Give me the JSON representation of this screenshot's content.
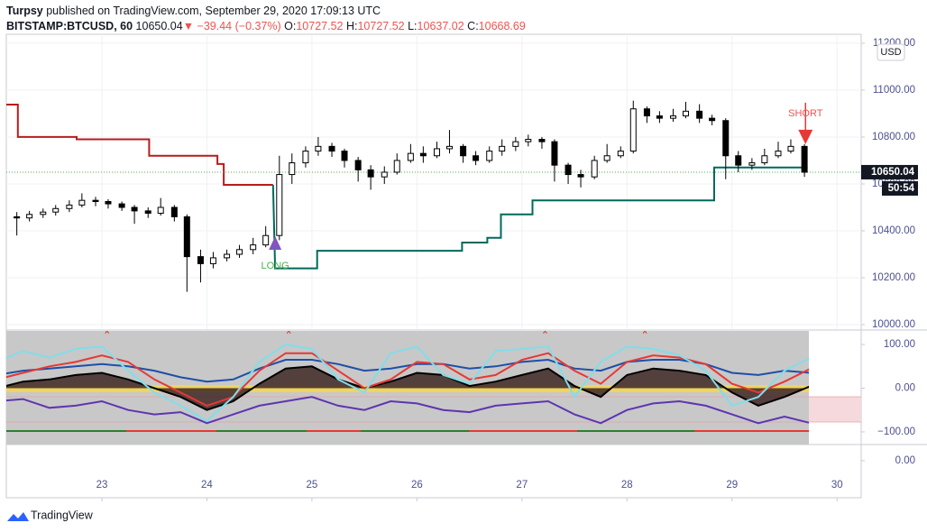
{
  "header": {
    "author": "Turpsy",
    "published": "published on TradingView.com, September 29, 2020 17:09:13 UTC",
    "symbol": "BITSTAMP:BTCUSD, 60",
    "change": "−39.44 (−0.37%)",
    "ohlc": [
      {
        "label": "O:",
        "value": 10727.52
      },
      {
        "label": "H:",
        "value": 10727.52
      },
      {
        "label": "L:",
        "value": 10637.02
      },
      {
        "label": "C:",
        "value": 10668.69
      }
    ]
  },
  "currency": "USD",
  "countdown": "50:54",
  "brand": "TradingView",
  "chart_data": [
    {
      "type": "candlestick",
      "x": [
        22.06,
        22.19,
        22.31,
        22.44,
        22.56,
        22.69,
        22.81,
        22.94,
        23.06,
        23.19,
        23.31,
        23.44,
        23.56,
        23.69,
        23.81,
        23.94,
        24.06,
        24.19,
        24.31,
        24.44,
        24.56,
        24.69,
        24.81,
        24.94,
        25.06,
        25.19,
        25.31,
        25.44,
        25.56,
        25.69,
        25.81,
        25.94,
        26.06,
        26.19,
        26.31,
        26.44,
        26.56,
        26.69,
        26.81,
        26.94,
        27.06,
        27.19,
        27.31,
        27.44,
        27.56,
        27.69,
        27.81,
        27.94,
        28.06,
        28.19,
        28.31,
        28.44,
        28.56,
        28.69,
        28.81,
        28.94,
        29.06,
        29.19,
        29.31,
        29.44,
        29.56,
        29.69
      ],
      "open": [
        10440,
        10460,
        10455,
        10470,
        10480,
        10495,
        10510,
        10530,
        10525,
        10515,
        10500,
        10485,
        10475,
        10500,
        10460,
        10290,
        10260,
        10285,
        10300,
        10320,
        10340,
        10380,
        10640,
        10690,
        10740,
        10760,
        10740,
        10700,
        10660,
        10630,
        10650,
        10700,
        10730,
        10720,
        10750,
        10760,
        10720,
        10700,
        10740,
        10760,
        10780,
        10790,
        10780,
        10680,
        10640,
        10630,
        10700,
        10720,
        10740,
        10920,
        10890,
        10880,
        10890,
        10910,
        10880,
        10870,
        10720,
        10680,
        10690,
        10720,
        10740,
        10760
      ],
      "high": [
        10475,
        10480,
        10485,
        10495,
        10510,
        10530,
        10560,
        10545,
        10535,
        10525,
        10510,
        10500,
        10540,
        10510,
        10470,
        10320,
        10310,
        10320,
        10340,
        10370,
        10420,
        10720,
        10730,
        10760,
        10800,
        10775,
        10750,
        10715,
        10680,
        10675,
        10730,
        10770,
        10760,
        10780,
        10830,
        10770,
        10740,
        10760,
        10790,
        10800,
        10810,
        10800,
        10790,
        10690,
        10660,
        10720,
        10770,
        10760,
        10955,
        10930,
        10910,
        10920,
        10950,
        10940,
        10895,
        10880,
        10740,
        10710,
        10750,
        10780,
        10790,
        10770
      ],
      "low": [
        10425,
        10380,
        10440,
        10455,
        10465,
        10480,
        10500,
        10505,
        10495,
        10485,
        10430,
        10455,
        10465,
        10440,
        10140,
        10180,
        10240,
        10270,
        10285,
        10300,
        10330,
        10360,
        10600,
        10670,
        10720,
        10715,
        10670,
        10610,
        10575,
        10600,
        10640,
        10690,
        10690,
        10710,
        10730,
        10690,
        10680,
        10690,
        10720,
        10740,
        10760,
        10750,
        10610,
        10600,
        10585,
        10620,
        10690,
        10710,
        10730,
        10860,
        10860,
        10865,
        10880,
        10860,
        10850,
        10620,
        10650,
        10660,
        10680,
        10710,
        10730,
        10630
      ],
      "close": [
        10460,
        10455,
        10470,
        10480,
        10495,
        10510,
        10530,
        10525,
        10515,
        10500,
        10485,
        10475,
        10500,
        10460,
        10290,
        10260,
        10285,
        10300,
        10320,
        10340,
        10380,
        10640,
        10690,
        10740,
        10760,
        10740,
        10700,
        10660,
        10630,
        10650,
        10700,
        10730,
        10720,
        10750,
        10760,
        10720,
        10700,
        10740,
        10760,
        10780,
        10790,
        10780,
        10680,
        10640,
        10630,
        10700,
        10720,
        10740,
        10920,
        10890,
        10880,
        10890,
        10910,
        10880,
        10870,
        10720,
        10680,
        10690,
        10720,
        10740,
        10760,
        10650
      ],
      "up_color": "#ffffff",
      "down_color": "#000000",
      "wick_color": "#000000",
      "lines": [
        {
          "color": "#b71c1c",
          "x": [
            22.09,
            22.2,
            22.2,
            22.76,
            22.76,
            23.45,
            23.45,
            24.1,
            24.1,
            24.16,
            24.16,
            24.63
          ],
          "values": [
            10938,
            10938,
            10800,
            10800,
            10790,
            10790,
            10720,
            10720,
            10685,
            10685,
            10596,
            10596
          ]
        },
        {
          "color": "#00695c",
          "x": [
            24.63,
            24.65,
            25.05,
            25.05,
            26.43,
            26.43,
            26.67,
            26.67,
            26.8,
            26.8,
            27.1,
            27.1,
            28.83,
            28.83,
            29.72
          ],
          "values": [
            10596,
            10240,
            10240,
            10315,
            10315,
            10350,
            10350,
            10370,
            10370,
            10470,
            10470,
            10530,
            10530,
            10670,
            10670
          ]
        }
      ],
      "last_price": 10650.04,
      "last_price_color": "#4caf50",
      "annotations": [
        {
          "text": "LONG",
          "x": 24.65,
          "y": 10250,
          "color": "#4caf50",
          "arrow": "up",
          "arrow_color": "#7e57c2"
        },
        {
          "text": "SHORT",
          "x": 29.7,
          "y": 10900,
          "color": "#ef5350",
          "arrow": "down",
          "arrow_color": "#e53935"
        }
      ],
      "xlim": [
        22.09,
        30.23
      ],
      "xticks": [
        23,
        24,
        25,
        26,
        27,
        28,
        29,
        30
      ],
      "ylim": [
        9981,
        11238
      ],
      "yticks": [
        {
          "value": 10000,
          "label": "10000.00"
        },
        {
          "value": 10200,
          "label": "10200.00"
        },
        {
          "value": 10400,
          "label": "10400.00"
        },
        {
          "value": 10600,
          "label": "10600.00"
        },
        {
          "value": 10800,
          "label": "10800.00"
        },
        {
          "value": 11000,
          "label": "11000.00"
        },
        {
          "value": 11200,
          "label": "11200.00"
        }
      ],
      "grid": true
    },
    {
      "type": "line",
      "x": [
        22.0,
        22.25,
        22.5,
        22.75,
        23.0,
        23.25,
        23.5,
        23.75,
        24.0,
        24.25,
        24.5,
        24.75,
        25.0,
        25.25,
        25.5,
        25.75,
        26.0,
        26.25,
        26.5,
        26.75,
        27.0,
        27.25,
        27.5,
        27.75,
        28.0,
        28.25,
        28.5,
        28.75,
        29.0,
        29.25,
        29.5,
        29.75
      ],
      "area": {
        "color": "#3e2723",
        "values": [
          0,
          15,
          20,
          30,
          35,
          20,
          0,
          -20,
          -50,
          -30,
          10,
          45,
          50,
          20,
          0,
          15,
          35,
          30,
          5,
          15,
          30,
          45,
          5,
          -20,
          30,
          45,
          40,
          30,
          -10,
          -40,
          -20,
          5
        ]
      },
      "series": [
        {
          "color": "#000000",
          "values": [
            0,
            15,
            20,
            30,
            35,
            20,
            0,
            -20,
            -50,
            -30,
            10,
            45,
            50,
            20,
            0,
            15,
            35,
            30,
            5,
            15,
            30,
            45,
            5,
            -20,
            30,
            45,
            40,
            30,
            -10,
            -40,
            -20,
            5
          ]
        },
        {
          "color": "#1e4fa8",
          "values": [
            30,
            40,
            45,
            50,
            55,
            50,
            40,
            25,
            15,
            20,
            45,
            65,
            65,
            55,
            40,
            45,
            55,
            55,
            45,
            50,
            60,
            65,
            45,
            40,
            60,
            65,
            65,
            55,
            35,
            30,
            40,
            35
          ]
        },
        {
          "color": "#e53935",
          "values": [
            20,
            35,
            50,
            60,
            75,
            60,
            20,
            -10,
            -40,
            -20,
            40,
            80,
            80,
            40,
            0,
            20,
            60,
            55,
            20,
            30,
            65,
            80,
            40,
            10,
            60,
            75,
            70,
            55,
            10,
            -10,
            15,
            45
          ]
        },
        {
          "color": "#80deea",
          "values": [
            60,
            85,
            70,
            90,
            95,
            40,
            -10,
            -40,
            -75,
            -20,
            60,
            100,
            90,
            20,
            -10,
            80,
            95,
            30,
            10,
            85,
            90,
            95,
            -20,
            60,
            95,
            90,
            75,
            40,
            -40,
            -20,
            40,
            70
          ]
        },
        {
          "color": "#5e35b1",
          "values": [
            -30,
            -25,
            -45,
            -40,
            -30,
            -50,
            -60,
            -55,
            -80,
            -60,
            -40,
            -30,
            -20,
            -40,
            -50,
            -30,
            -35,
            -50,
            -55,
            -40,
            -35,
            -30,
            -60,
            -80,
            -50,
            -35,
            -30,
            -40,
            -60,
            -80,
            -65,
            -80
          ]
        }
      ],
      "annotations": [
        {
          "text": "*",
          "x": 23.05,
          "y": 121,
          "color": "#e53935"
        },
        {
          "text": "*",
          "x": 24.78,
          "y": 121,
          "color": "#e53935"
        },
        {
          "text": "*",
          "x": 27.22,
          "y": 121,
          "color": "#e53935"
        },
        {
          "text": "*",
          "x": 28.17,
          "y": 121,
          "color": "#e53935"
        }
      ],
      "ylim": [
        -129,
        131
      ],
      "yticks": [
        {
          "value": 100,
          "label": "100.00"
        },
        {
          "value": 0,
          "label": "0.00"
        },
        {
          "value": -100,
          "label": "−100.00"
        }
      ]
    },
    {
      "type": "empty",
      "ylim": [
        -2.3,
        1
      ],
      "yticks": [
        {
          "value": 0,
          "label": "0.00"
        }
      ]
    }
  ]
}
